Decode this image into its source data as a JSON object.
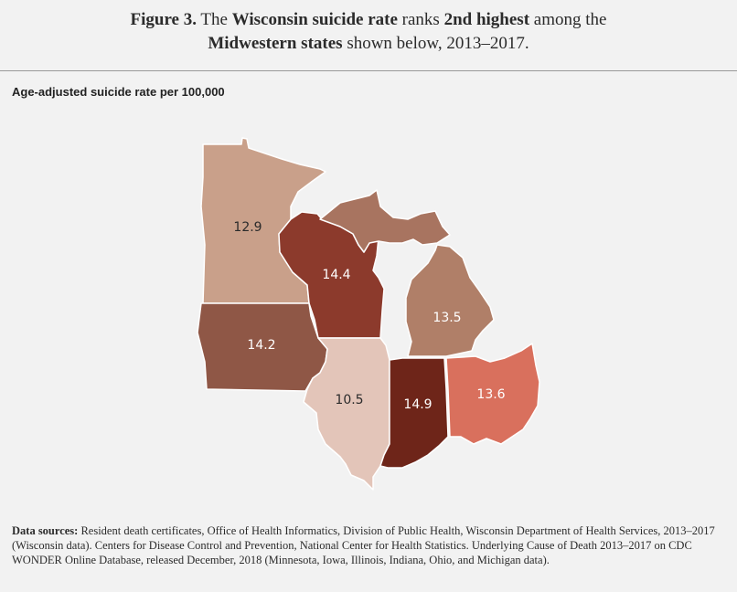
{
  "title": {
    "part1": "Figure 3.",
    "part2": " The ",
    "part3": "Wisconsin suicide rate",
    "part4": " ranks ",
    "part5": "2nd highest",
    "part6": " among the",
    "part7": "Midwestern states",
    "part8": " shown below, 2013–2017."
  },
  "subtitle": "Age-adjusted suicide rate per 100,000",
  "states": [
    {
      "key": "minnesota",
      "rate": "12.9",
      "color": "#c9a08a",
      "text_color": "#2b2b2b"
    },
    {
      "key": "wisconsin",
      "rate": "14.4",
      "color": "#8c3a2c",
      "text_color": "#ffffff"
    },
    {
      "key": "michigan",
      "rate": "13.5",
      "color": "#b07f68",
      "text_color": "#ffffff"
    },
    {
      "key": "iowa",
      "rate": "14.2",
      "color": "#8f5746",
      "text_color": "#ffffff"
    },
    {
      "key": "illinois",
      "rate": "10.5",
      "color": "#e3c5b9",
      "text_color": "#2b2b2b"
    },
    {
      "key": "indiana",
      "rate": "14.9",
      "color": "#6e2519",
      "text_color": "#ffffff"
    },
    {
      "key": "ohio",
      "rate": "13.6",
      "color": "#d9705d",
      "text_color": "#ffffff"
    }
  ],
  "michigan_upper_color": "#a87460",
  "sources": {
    "label": "Data sources:",
    "text": " Resident death certificates, Office of Health Informatics, Division of Public Health, Wisconsin Department of Health Services, 2013–2017 (Wisconsin data). Centers for Disease Control and Prevention, National Center for Health Statistics. Underlying Cause of Death 2013–2017 on CDC WONDER Online Database, released December, 2018 (Minnesota, Iowa, Illinois, Indiana, Ohio, and Michigan data)."
  }
}
